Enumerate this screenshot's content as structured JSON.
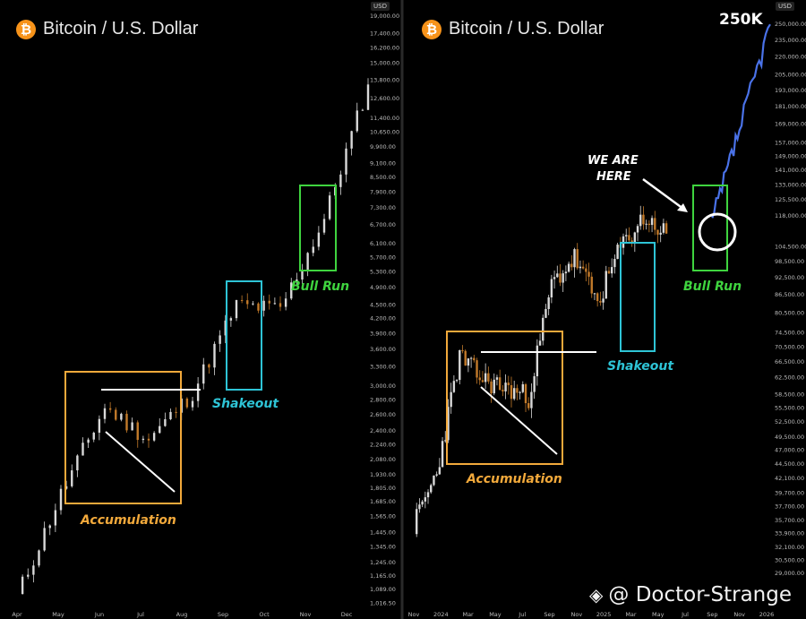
{
  "chart_data": [
    {
      "type": "line",
      "title": "Bitcoin / U.S. Dollar",
      "currency": "USD",
      "x_ticks": [
        "Apr",
        "May",
        "Jun",
        "Jul",
        "Aug",
        "Sep",
        "Oct",
        "Nov",
        "Dec"
      ],
      "y_ticks": [
        "19,000.00",
        "17,400.00",
        "16,200.00",
        "15,000.00",
        "13,800.00",
        "12,600.00",
        "11,400.00",
        "10,650.00",
        "9,900.00",
        "9,100.00",
        "8,500.00",
        "7,900.00",
        "7,300.00",
        "6,700.00",
        "6,100.00",
        "5,700.00",
        "5,300.00",
        "4,900.00",
        "4,500.00",
        "4,200.00",
        "3,900.00",
        "3,600.00",
        "3,300.00",
        "3,000.00",
        "2,800.00",
        "2,600.00",
        "2,400.00",
        "2,240.00",
        "2,080.00",
        "1,930.00",
        "1,805.00",
        "1,685.00",
        "1,565.00",
        "1,445.00",
        "1,345.00",
        "1,245.00",
        "1,165.00",
        "1,089.00",
        "1,016.50"
      ],
      "y_log_scale": true,
      "ylim": [
        1000,
        19500
      ],
      "series": [
        {
          "x": [
            "Apr",
            "May",
            "Jun",
            "Jul",
            "Aug",
            "Sep",
            "Oct",
            "Nov",
            "Dec"
          ],
          "y": [
            1050,
            1750,
            2700,
            2300,
            2900,
            4500,
            4400,
            6900,
            13500
          ],
          "color": "#c9b48f"
        }
      ],
      "annotations": [
        {
          "label": "Accumulation",
          "color": "#f2a93b"
        },
        {
          "label": "Shakeout",
          "color": "#2ec4d6"
        },
        {
          "label": "Bull Run",
          "color": "#3fd43f"
        }
      ]
    },
    {
      "type": "line",
      "title": "Bitcoin / U.S. Dollar",
      "currency": "USD",
      "x_ticks": [
        "Nov",
        "2024",
        "Mar",
        "May",
        "Jul",
        "Sep",
        "Nov",
        "2025",
        "Mar",
        "May",
        "Jul",
        "Sep",
        "Nov",
        "2026"
      ],
      "y_ticks": [
        "250,000.00",
        "235,000.00",
        "220,000.00",
        "205,000.00",
        "193,000.00",
        "181,000.00",
        "169,000.00",
        "157,000.00",
        "149,000.00",
        "141,000.00",
        "133,000.00",
        "125,500.00",
        "118,000.00",
        "104,500.00",
        "98,500.00",
        "92,500.00",
        "86,500.00",
        "80,500.00",
        "74,500.00",
        "70,500.00",
        "66,500.00",
        "62,500.00",
        "58,500.00",
        "55,500.00",
        "52,500.00",
        "49,500.00",
        "47,000.00",
        "44,500.00",
        "42,100.00",
        "39,700.00",
        "37,700.00",
        "35,700.00",
        "33,900.00",
        "32,100.00",
        "30,500.00",
        "29,000.00"
      ],
      "y_log_scale": true,
      "ylim": [
        28000,
        260000
      ],
      "series": [
        {
          "x": [
            "Nov",
            "2024",
            "Mar",
            "May",
            "Jul",
            "Sep",
            "Nov",
            "2025",
            "Mar",
            "May",
            "Jul",
            "Sep"
          ],
          "y": [
            35000,
            43000,
            68000,
            62000,
            60000,
            58000,
            90000,
            100000,
            84000,
            104000,
            117000,
            110000
          ],
          "color": "#c9b48f"
        },
        {
          "x": [
            "Sep",
            "Nov",
            "2026"
          ],
          "y": [
            115000,
            165000,
            250000
          ],
          "color": "#4a72e8"
        }
      ],
      "annotations": [
        {
          "label": "Accumulation",
          "color": "#f2a93b"
        },
        {
          "label": "Shakeout",
          "color": "#2ec4d6"
        },
        {
          "label": "Bull Run",
          "color": "#3fd43f"
        },
        {
          "label": "WE ARE HERE",
          "color": "#ffffff"
        },
        {
          "label": "250K",
          "color": "#ffffff"
        }
      ]
    }
  ],
  "watermark": "@ Doctor-Strange",
  "btc_symbol": "₿"
}
